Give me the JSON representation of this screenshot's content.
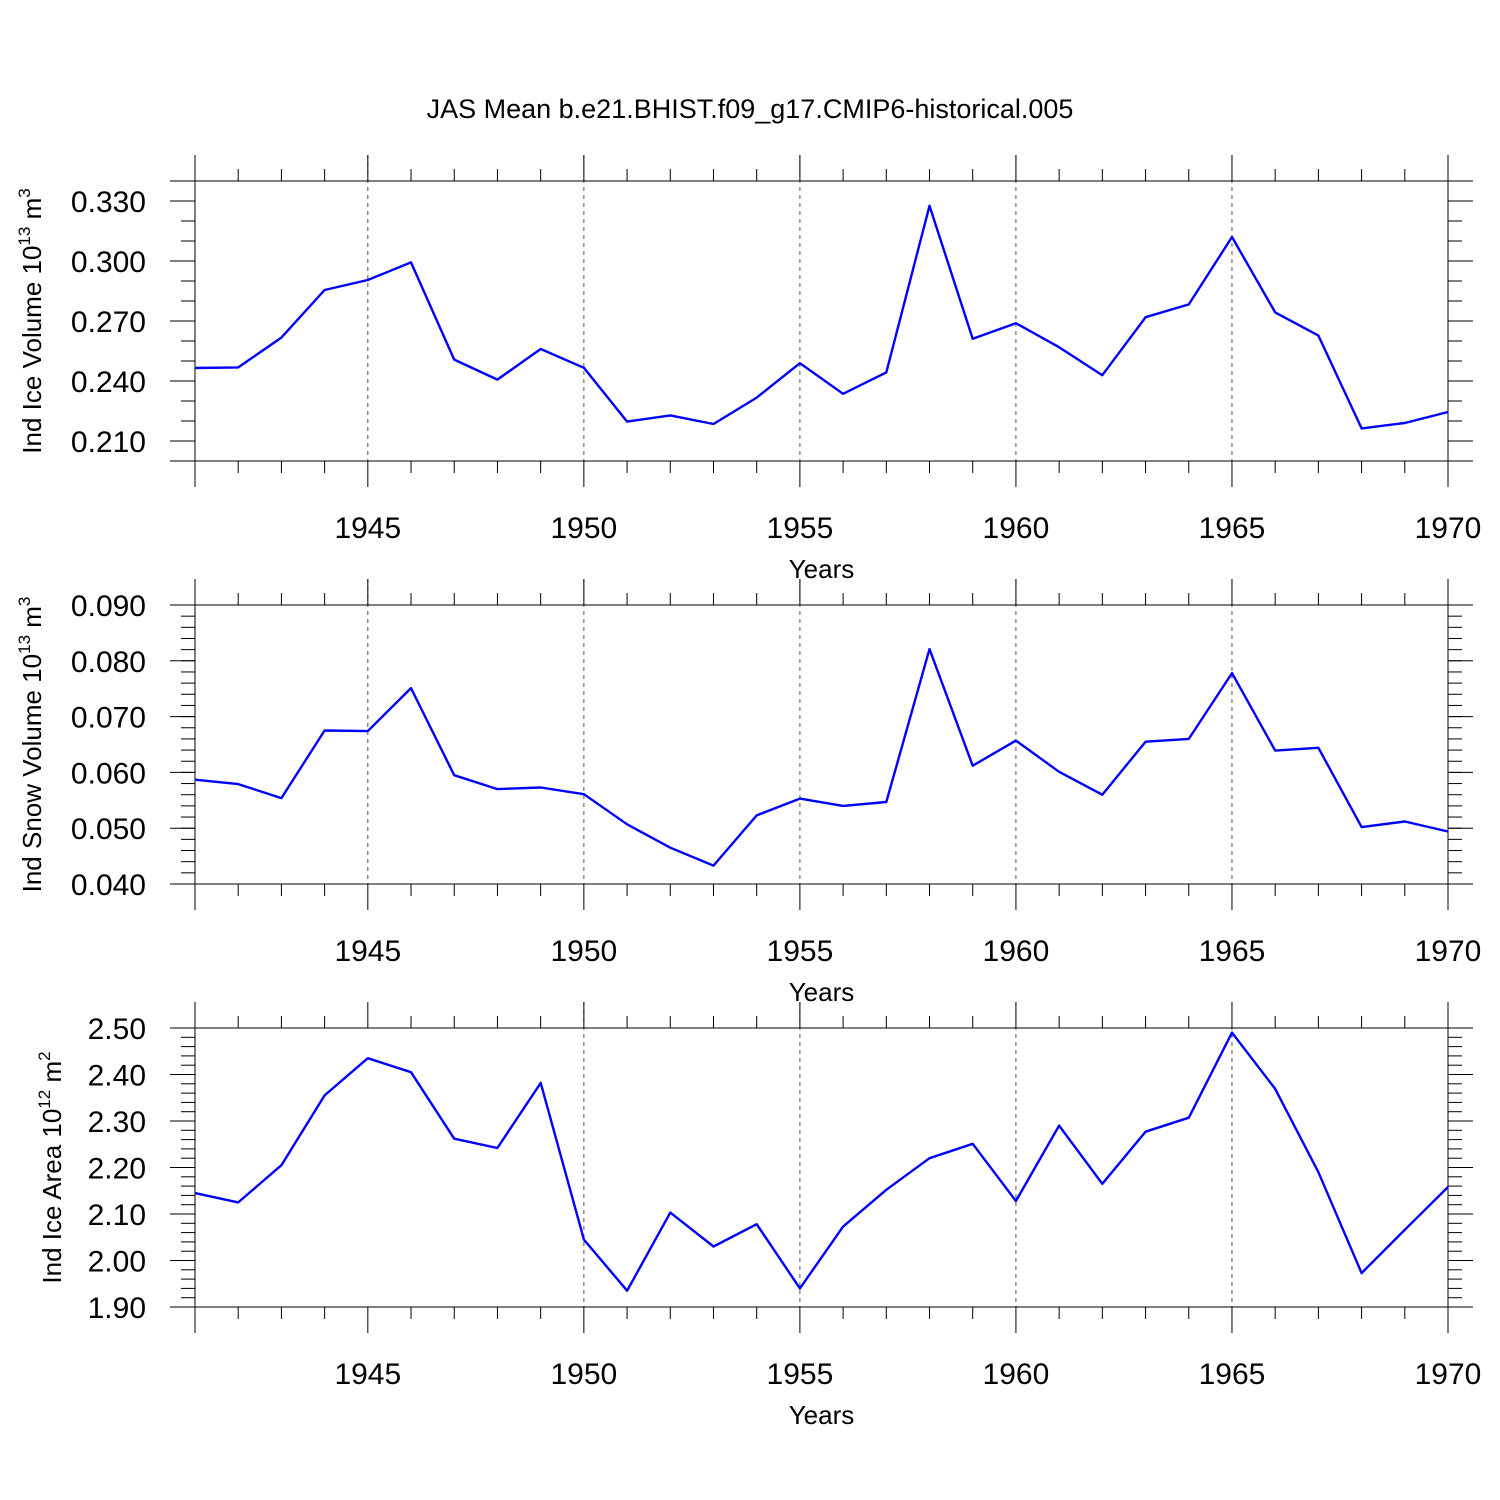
{
  "title": "JAS Mean b.e21.BHIST.f09_g17.CMIP6-historical.005",
  "line_color": "#0000ff",
  "chart_data": [
    {
      "type": "line",
      "ylabel_main": "Ind Ice Volume 10",
      "ylabel_exp": "13",
      "ylabel_unit": " m",
      "ylabel_unit_exp": "3",
      "xlabel": "Years",
      "xlim": [
        1941,
        1970
      ],
      "ylim": [
        0.2,
        0.34
      ],
      "yticks": [
        0.21,
        0.24,
        0.27,
        0.3,
        0.33
      ],
      "ytick_labels": [
        "0.210",
        "0.240",
        "0.270",
        "0.300",
        "0.330"
      ],
      "y_minor_step": 0.01,
      "xticks": [
        1945,
        1950,
        1955,
        1960,
        1965,
        1970
      ],
      "xtick_labels": [
        "1945",
        "1950",
        "1955",
        "1960",
        "1965",
        "1970"
      ],
      "grid_x": [
        1945,
        1950,
        1955,
        1960,
        1965
      ],
      "x": [
        1941,
        1942,
        1943,
        1944,
        1945,
        1946,
        1947,
        1948,
        1949,
        1950,
        1951,
        1952,
        1953,
        1954,
        1955,
        1956,
        1957,
        1958,
        1959,
        1960,
        1961,
        1962,
        1963,
        1964,
        1965,
        1966,
        1967,
        1968,
        1969,
        1970
      ],
      "values": [
        0.2465,
        0.2468,
        0.2617,
        0.2855,
        0.2905,
        0.2993,
        0.2507,
        0.2407,
        0.256,
        0.2466,
        0.2197,
        0.2228,
        0.2185,
        0.2317,
        0.2489,
        0.2336,
        0.2443,
        0.3276,
        0.2611,
        0.2689,
        0.2569,
        0.2429,
        0.2719,
        0.2783,
        0.312,
        0.2743,
        0.2627,
        0.2163,
        0.219,
        0.2245
      ]
    },
    {
      "type": "line",
      "ylabel_main": "Ind Snow Volume 10",
      "ylabel_exp": "13",
      "ylabel_unit": " m",
      "ylabel_unit_exp": "3",
      "xlabel": "Years",
      "xlim": [
        1941,
        1970
      ],
      "ylim": [
        0.04,
        0.09
      ],
      "yticks": [
        0.04,
        0.05,
        0.06,
        0.07,
        0.08,
        0.09
      ],
      "ytick_labels": [
        "0.040",
        "0.050",
        "0.060",
        "0.070",
        "0.080",
        "0.090"
      ],
      "y_minor_step": 0.002,
      "xticks": [
        1945,
        1950,
        1955,
        1960,
        1965,
        1970
      ],
      "xtick_labels": [
        "1945",
        "1950",
        "1955",
        "1960",
        "1965",
        "1970"
      ],
      "grid_x": [
        1945,
        1950,
        1955,
        1960,
        1965
      ],
      "x": [
        1941,
        1942,
        1943,
        1944,
        1945,
        1946,
        1947,
        1948,
        1949,
        1950,
        1951,
        1952,
        1953,
        1954,
        1955,
        1956,
        1957,
        1958,
        1959,
        1960,
        1961,
        1962,
        1963,
        1964,
        1965,
        1966,
        1967,
        1968,
        1969,
        1970
      ],
      "values": [
        0.0587,
        0.0579,
        0.0554,
        0.0675,
        0.0674,
        0.0751,
        0.0595,
        0.057,
        0.0573,
        0.0561,
        0.0507,
        0.0465,
        0.0433,
        0.0523,
        0.0553,
        0.054,
        0.0547,
        0.0821,
        0.0612,
        0.0657,
        0.0601,
        0.056,
        0.0655,
        0.066,
        0.0778,
        0.0639,
        0.0644,
        0.0502,
        0.0512,
        0.0494
      ]
    },
    {
      "type": "line",
      "ylabel_main": "Ind Ice Area 10",
      "ylabel_exp": "12",
      "ylabel_unit": " m",
      "ylabel_unit_exp": "2",
      "xlabel": "Years",
      "xlim": [
        1941,
        1970
      ],
      "ylim": [
        1.9,
        2.5
      ],
      "yticks": [
        1.9,
        2.0,
        2.1,
        2.2,
        2.3,
        2.4,
        2.5
      ],
      "ytick_labels": [
        "1.90",
        "2.00",
        "2.10",
        "2.20",
        "2.30",
        "2.40",
        "2.50"
      ],
      "y_minor_step": 0.02,
      "xticks": [
        1945,
        1950,
        1955,
        1960,
        1965,
        1970
      ],
      "xtick_labels": [
        "1945",
        "1950",
        "1955",
        "1960",
        "1965",
        "1970"
      ],
      "grid_x": [
        1950,
        1955,
        1960,
        1965
      ],
      "x": [
        1941,
        1942,
        1943,
        1944,
        1945,
        1946,
        1947,
        1948,
        1949,
        1950,
        1951,
        1952,
        1953,
        1954,
        1955,
        1956,
        1957,
        1958,
        1959,
        1960,
        1961,
        1962,
        1963,
        1964,
        1965,
        1966,
        1967,
        1968,
        1969,
        1970
      ],
      "values": [
        2.145,
        2.125,
        2.205,
        2.355,
        2.435,
        2.405,
        2.262,
        2.242,
        2.382,
        2.045,
        1.935,
        2.103,
        2.03,
        2.078,
        1.94,
        2.073,
        2.152,
        2.22,
        2.251,
        2.128,
        2.29,
        2.165,
        2.277,
        2.307,
        2.49,
        2.369,
        2.19,
        1.973,
        2.066,
        2.158
      ]
    }
  ]
}
